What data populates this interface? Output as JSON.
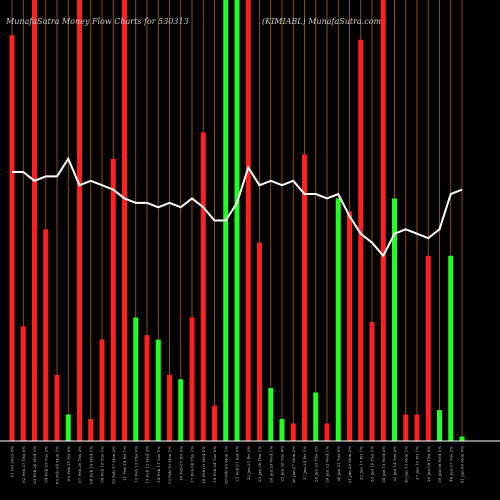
{
  "chart_data": {
    "type": "bar",
    "title": "MunafaSutra  Money Flow  Charts for 530313",
    "subtitle": "(KIMIABL) MunafaSutra.com",
    "colors": {
      "background": "#000000",
      "up": "#22ff22",
      "down": "#ff2020",
      "grid": "#b06010",
      "line": "#ffffff"
    },
    "ylim": [
      0,
      100
    ],
    "grid": "vertical",
    "categories": [
      "01 Fri 2025 0%",
      "02 Feb 27 Thu 0%",
      "03 Feb 26 Wed 1%",
      "04 Feb 25 Tue 2%",
      "05 Feb 24 Mon 1%",
      "06 Feb 21 Fri 0%",
      "07 Feb 20 Thu 3%",
      "08 Feb 19 Wed 1%",
      "09 Feb 18 Tue 1%",
      "10 Feb 17 Mon 2%",
      "11 Feb 14 Fri 1%",
      "12 Feb 13 Thu 0%",
      "13 Feb 12 Wed 2%",
      "14 Feb 11 Tue 1%",
      "15 Feb 10 Mon 1%",
      "16 Feb 07 Fri 2%",
      "17 Feb 06 Thu 1%",
      "18 Feb 05 Wed 0%",
      "19 Feb 04 Tue 2%",
      "20 Feb 03 Mon 1%",
      "21 Feb 01 Sat 3%",
      "22 Jan 31 Fri 2%",
      "23 Jan 30 Thu 1%",
      "24 Jan 29 Wed 1%",
      "25 Jan 28 Tue 0%",
      "26 Jan 27 Mon 2%",
      "27 Jan 24 Fri 1%",
      "28 Jan 23 Thu 2%",
      "29 Jan 22 Wed 1%",
      "30 Jan 21 Tue 0%",
      "31 Jan 20 Mon 2%",
      "32 Jan 17 Fri 1%",
      "33 Jan 16 Thu 1%",
      "34 Jan 15 Wed 3%",
      "35 Jan 14 Tue 2%",
      "36 Jan 13 Mon 1%",
      "37 Jan 10 Fri 1%",
      "38 Jan 09 Thu 0%",
      "39 Jan 08 Wed 1%",
      "40 Jan 07 Tue 2%",
      "41 Jan 06 Mon 0%"
    ],
    "series": [
      {
        "values": [
          92,
          26,
          100,
          48,
          15,
          6,
          100,
          5,
          23,
          64,
          100,
          28,
          24,
          23,
          15,
          14,
          28,
          70,
          8,
          100,
          100,
          100,
          45,
          12,
          5,
          4,
          65,
          11,
          4,
          55,
          52,
          91,
          27,
          100,
          55,
          6,
          6,
          42,
          7,
          42,
          1
        ],
        "colors": [
          "down",
          "down",
          "down",
          "down",
          "down",
          "up",
          "down",
          "down",
          "down",
          "down",
          "down",
          "up",
          "down",
          "up",
          "down",
          "up",
          "down",
          "down",
          "down",
          "up",
          "up",
          "down",
          "down",
          "up",
          "up",
          "down",
          "down",
          "up",
          "down",
          "up",
          "down",
          "down",
          "down",
          "down",
          "up",
          "down",
          "down",
          "down",
          "up",
          "up",
          "up"
        ]
      },
      {
        "name": "Line",
        "type": "line",
        "values": [
          61,
          61,
          59,
          60,
          60,
          64,
          58,
          59,
          58,
          57,
          55,
          54,
          54,
          53,
          54,
          53,
          55,
          53,
          50,
          50,
          54,
          62,
          58,
          59,
          58,
          59,
          56,
          56,
          55,
          56,
          51,
          47,
          45,
          42,
          47,
          48,
          47,
          46,
          48,
          56,
          57
        ]
      }
    ]
  }
}
